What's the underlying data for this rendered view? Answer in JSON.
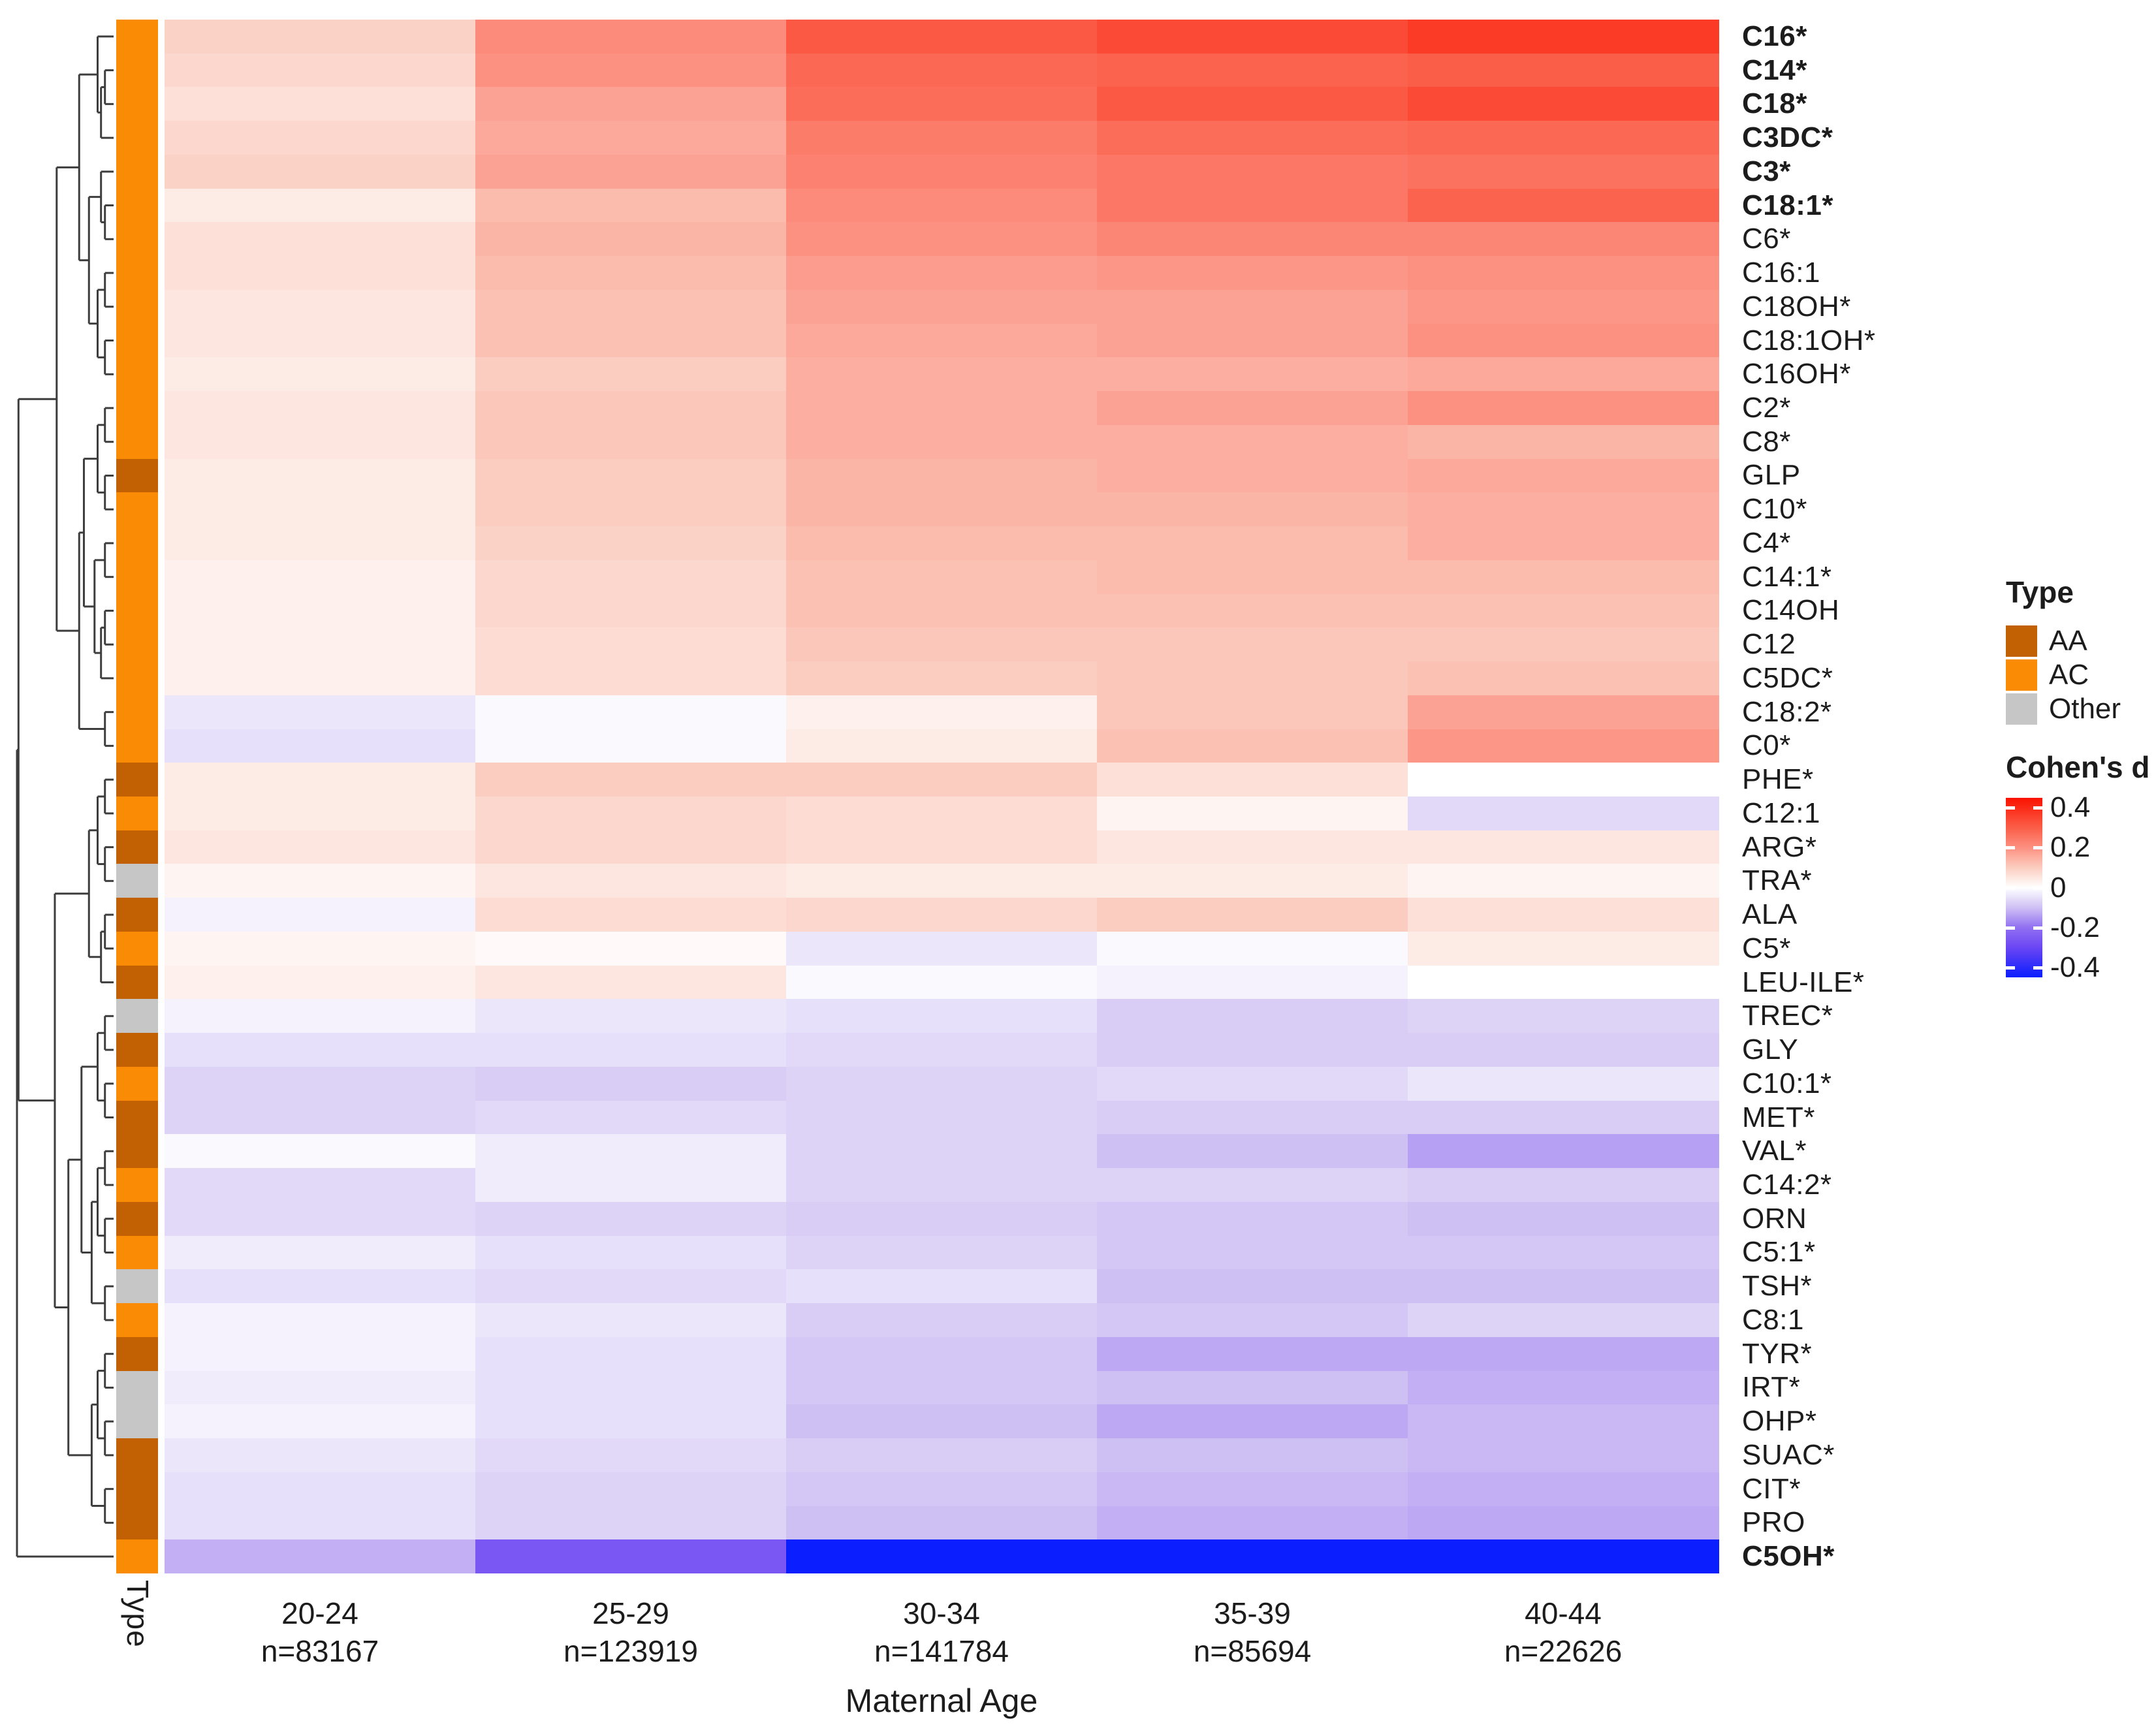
{
  "page": {
    "background": "#FFFFFF"
  },
  "chart_data": {
    "type": "heatmap",
    "title": "",
    "xlabel": "Maternal Age",
    "row_annotation_title": "Type",
    "grid": "off",
    "legend_position": "right",
    "columns": [
      {
        "age": "20-24",
        "n": "n=83167"
      },
      {
        "age": "25-29",
        "n": "n=123919"
      },
      {
        "age": "30-34",
        "n": "n=141784"
      },
      {
        "age": "35-39",
        "n": "n=85694"
      },
      {
        "age": "40-44",
        "n": "n=22626"
      }
    ],
    "rows": [
      {
        "label": "C16*",
        "bold": true,
        "type": "AC",
        "values": [
          0.09,
          0.21,
          0.31,
          0.34,
          0.37
        ]
      },
      {
        "label": "C14*",
        "bold": true,
        "type": "AC",
        "values": [
          0.08,
          0.2,
          0.28,
          0.29,
          0.3
        ]
      },
      {
        "label": "C18*",
        "bold": true,
        "type": "AC",
        "values": [
          0.06,
          0.17,
          0.27,
          0.31,
          0.34
        ]
      },
      {
        "label": "C3DC*",
        "bold": true,
        "type": "AC",
        "values": [
          0.08,
          0.16,
          0.24,
          0.27,
          0.28
        ]
      },
      {
        "label": "C3*",
        "bold": true,
        "type": "AC",
        "values": [
          0.09,
          0.17,
          0.23,
          0.25,
          0.26
        ]
      },
      {
        "label": "C18:1*",
        "bold": true,
        "type": "AC",
        "values": [
          0.04,
          0.13,
          0.21,
          0.25,
          0.29
        ]
      },
      {
        "label": "C6*",
        "bold": false,
        "type": "AC",
        "values": [
          0.06,
          0.14,
          0.2,
          0.22,
          0.22
        ]
      },
      {
        "label": "C16:1",
        "bold": false,
        "type": "AC",
        "values": [
          0.06,
          0.13,
          0.18,
          0.19,
          0.2
        ]
      },
      {
        "label": "C18OH*",
        "bold": false,
        "type": "AC",
        "values": [
          0.05,
          0.12,
          0.17,
          0.17,
          0.19
        ]
      },
      {
        "label": "C18:1OH*",
        "bold": false,
        "type": "AC",
        "values": [
          0.05,
          0.12,
          0.16,
          0.17,
          0.2
        ]
      },
      {
        "label": "C16OH*",
        "bold": false,
        "type": "AC",
        "values": [
          0.04,
          0.1,
          0.15,
          0.15,
          0.16
        ]
      },
      {
        "label": "C2*",
        "bold": false,
        "type": "AC",
        "values": [
          0.05,
          0.11,
          0.15,
          0.17,
          0.2
        ]
      },
      {
        "label": "C8*",
        "bold": false,
        "type": "AC",
        "values": [
          0.05,
          0.11,
          0.15,
          0.15,
          0.14
        ]
      },
      {
        "label": "GLP",
        "bold": false,
        "type": "AA",
        "values": [
          0.04,
          0.1,
          0.14,
          0.15,
          0.16
        ]
      },
      {
        "label": "C10*",
        "bold": false,
        "type": "AC",
        "values": [
          0.04,
          0.1,
          0.14,
          0.14,
          0.15
        ]
      },
      {
        "label": "C4*",
        "bold": false,
        "type": "AC",
        "values": [
          0.04,
          0.09,
          0.13,
          0.13,
          0.15
        ]
      },
      {
        "label": "C14:1*",
        "bold": false,
        "type": "AC",
        "values": [
          0.03,
          0.08,
          0.12,
          0.13,
          0.13
        ]
      },
      {
        "label": "C14OH",
        "bold": false,
        "type": "AC",
        "values": [
          0.03,
          0.08,
          0.12,
          0.12,
          0.12
        ]
      },
      {
        "label": "C12",
        "bold": false,
        "type": "AC",
        "values": [
          0.03,
          0.07,
          0.11,
          0.11,
          0.11
        ]
      },
      {
        "label": "C5DC*",
        "bold": false,
        "type": "AC",
        "values": [
          0.03,
          0.07,
          0.1,
          0.11,
          0.12
        ]
      },
      {
        "label": "C18:2*",
        "bold": false,
        "type": "AC",
        "values": [
          -0.04,
          -0.01,
          0.03,
          0.11,
          0.17
        ]
      },
      {
        "label": "C0*",
        "bold": false,
        "type": "AC",
        "values": [
          -0.05,
          -0.01,
          0.04,
          0.12,
          0.19
        ]
      },
      {
        "label": "PHE*",
        "bold": false,
        "type": "AA",
        "values": [
          0.04,
          0.1,
          0.1,
          0.06,
          0.0
        ]
      },
      {
        "label": "C12:1",
        "bold": false,
        "type": "AC",
        "values": [
          0.04,
          0.08,
          0.07,
          0.02,
          -0.06
        ]
      },
      {
        "label": "ARG*",
        "bold": false,
        "type": "AA",
        "values": [
          0.05,
          0.08,
          0.07,
          0.05,
          0.05
        ]
      },
      {
        "label": "TRA*",
        "bold": false,
        "type": "Other",
        "values": [
          0.02,
          0.05,
          0.04,
          0.04,
          0.02
        ]
      },
      {
        "label": "ALA",
        "bold": false,
        "type": "AA",
        "values": [
          -0.02,
          0.07,
          0.08,
          0.1,
          0.06
        ]
      },
      {
        "label": "C5*",
        "bold": false,
        "type": "AC",
        "values": [
          0.02,
          0.01,
          -0.04,
          -0.01,
          0.04
        ]
      },
      {
        "label": "LEU-ILE*",
        "bold": false,
        "type": "AA",
        "values": [
          0.03,
          0.05,
          -0.01,
          -0.02,
          0.0
        ]
      },
      {
        "label": "TREC*",
        "bold": false,
        "type": "Other",
        "values": [
          -0.02,
          -0.04,
          -0.05,
          -0.08,
          -0.07
        ]
      },
      {
        "label": "GLY",
        "bold": false,
        "type": "AA",
        "values": [
          -0.05,
          -0.05,
          -0.06,
          -0.08,
          -0.08
        ]
      },
      {
        "label": "C10:1*",
        "bold": false,
        "type": "AC",
        "values": [
          -0.07,
          -0.08,
          -0.07,
          -0.06,
          -0.04
        ]
      },
      {
        "label": "MET*",
        "bold": false,
        "type": "AA",
        "values": [
          -0.07,
          -0.06,
          -0.07,
          -0.08,
          -0.08
        ]
      },
      {
        "label": "VAL*",
        "bold": false,
        "type": "AA",
        "values": [
          -0.01,
          -0.03,
          -0.07,
          -0.1,
          -0.14
        ]
      },
      {
        "label": "C14:2*",
        "bold": false,
        "type": "AC",
        "values": [
          -0.06,
          -0.03,
          -0.07,
          -0.07,
          -0.08
        ]
      },
      {
        "label": "ORN",
        "bold": false,
        "type": "AA",
        "values": [
          -0.06,
          -0.07,
          -0.08,
          -0.09,
          -0.1
        ]
      },
      {
        "label": "C5:1*",
        "bold": false,
        "type": "AC",
        "values": [
          -0.03,
          -0.05,
          -0.07,
          -0.09,
          -0.09
        ]
      },
      {
        "label": "TSH*",
        "bold": false,
        "type": "Other",
        "values": [
          -0.05,
          -0.06,
          -0.05,
          -0.1,
          -0.1
        ]
      },
      {
        "label": "C8:1",
        "bold": false,
        "type": "AC",
        "values": [
          -0.02,
          -0.04,
          -0.08,
          -0.09,
          -0.07
        ]
      },
      {
        "label": "TYR*",
        "bold": false,
        "type": "AA",
        "values": [
          -0.02,
          -0.05,
          -0.09,
          -0.13,
          -0.13
        ]
      },
      {
        "label": "IRT*",
        "bold": false,
        "type": "Other",
        "values": [
          -0.03,
          -0.05,
          -0.09,
          -0.1,
          -0.12
        ]
      },
      {
        "label": "OHP*",
        "bold": false,
        "type": "Other",
        "values": [
          -0.02,
          -0.05,
          -0.1,
          -0.13,
          -0.11
        ]
      },
      {
        "label": "SUAC*",
        "bold": false,
        "type": "AA",
        "values": [
          -0.04,
          -0.06,
          -0.08,
          -0.1,
          -0.11
        ]
      },
      {
        "label": "CIT*",
        "bold": false,
        "type": "AA",
        "values": [
          -0.05,
          -0.07,
          -0.09,
          -0.11,
          -0.12
        ]
      },
      {
        "label": "PRO",
        "bold": false,
        "type": "AA",
        "values": [
          -0.05,
          -0.07,
          -0.1,
          -0.12,
          -0.13
        ]
      },
      {
        "label": "C5OH*",
        "bold": true,
        "type": "AC",
        "values": [
          -0.12,
          -0.26,
          -0.45,
          -0.45,
          -0.45
        ]
      }
    ],
    "type_legend": {
      "title": "Type",
      "items": [
        {
          "label": "AA",
          "color": "#C26104"
        },
        {
          "label": "AC",
          "color": "#F98B05"
        },
        {
          "label": "Other",
          "color": "#C6C6C6"
        }
      ]
    },
    "colorbar": {
      "title": "Cohen's d",
      "tick_labels": [
        "0.4",
        "0.2",
        "0",
        "-0.2",
        "-0.4"
      ],
      "tick_values": [
        0.4,
        0.2,
        0,
        -0.2,
        -0.4
      ],
      "vmin": -0.45,
      "vmax": 0.45
    },
    "color_scale": {
      "stops": [
        [
          -0.45,
          "#0A1EFE"
        ],
        [
          -0.3,
          "#6B46F4"
        ],
        [
          -0.2,
          "#9170F2"
        ],
        [
          -0.1,
          "#CFC0F4"
        ],
        [
          0.0,
          "#FFFFFF"
        ],
        [
          0.1,
          "#FBCDC0"
        ],
        [
          0.2,
          "#FC9081"
        ],
        [
          0.3,
          "#FB5E48"
        ],
        [
          0.45,
          "#FA1200"
        ]
      ]
    },
    "dendrogram": [
      [
        [
          [
            [
              0,
              [
                [
                  1,
                  2
                ],
                3
              ]
            ],
            [
              [
                4,
                [
                  5,
                  6
                ]
              ],
              [
                [
                  7,
                  8
                ],
                [
                  9,
                  10
                ]
              ]
            ]
          ],
          [
            [
              [
                [
                  11,
                  12
                ],
                [
                  13,
                  14
                ]
              ],
              [
                [
                  15,
                  16
                ],
                [
                  [
                    17,
                    18
                  ],
                  19
                ]
              ]
            ],
            [
              20,
              21
            ]
          ]
        ],
        [
          [
            [
              [
                22,
                23
              ],
              [
                24,
                25
              ]
            ],
            [
              [
                26,
                27
              ],
              28
            ]
          ],
          [
            [
              [
                [
                  29,
                  30
                ],
                [
                  31,
                  32
                ]
              ],
              [
                [
                  [
                    33,
                    34
                  ],
                  [
                    35,
                    36
                  ]
                ],
                [
                  37,
                  38
                ]
              ]
            ],
            [
              [
                [
                  39,
                  40
                ],
                [
                  41,
                  42
                ]
              ],
              [
                43,
                44
              ]
            ]
          ]
        ]
      ],
      45
    ]
  }
}
